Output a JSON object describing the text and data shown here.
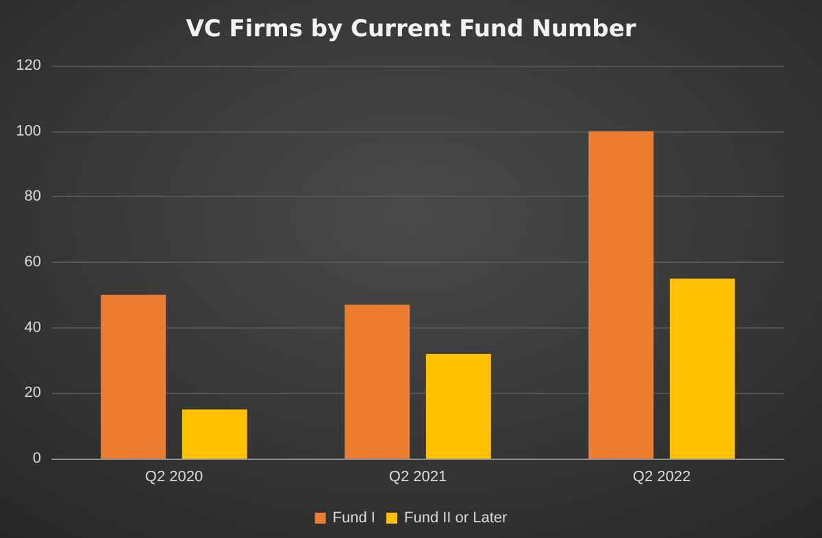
{
  "chart_data": {
    "type": "bar",
    "title": "VC Firms by Current Fund Number",
    "categories": [
      "Q2 2020",
      "Q2 2021",
      "Q2 2022"
    ],
    "series": [
      {
        "name": "Fund I",
        "color": "#ed7d31",
        "values": [
          50,
          47,
          100
        ]
      },
      {
        "name": "Fund II or Later",
        "color": "#ffc000",
        "values": [
          15,
          32,
          55
        ]
      }
    ],
    "ylim": [
      0,
      120
    ],
    "yticks": [
      0,
      20,
      40,
      60,
      80,
      100,
      120
    ],
    "grid": "y",
    "legend": "bottom"
  }
}
